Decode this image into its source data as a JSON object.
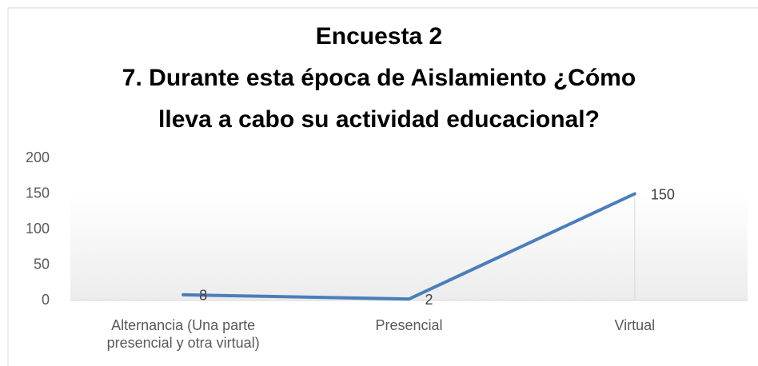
{
  "chart_data": {
    "type": "line",
    "title": [
      "Encuesta 2",
      "7. Durante esta época de Aislamiento ¿Cómo",
      "lleva a cabo su actividad educacional?"
    ],
    "categories": [
      "Alternancia (Una parte presencial y otra virtual)",
      "Presencial",
      "Virtual"
    ],
    "series": [
      {
        "name": "Encuesta 2",
        "color": "#4a7ebb",
        "values": [
          8,
          2,
          150
        ]
      }
    ],
    "ylim": [
      0,
      200
    ],
    "yticks": [
      0,
      50,
      100,
      150,
      200
    ],
    "grid": false
  }
}
